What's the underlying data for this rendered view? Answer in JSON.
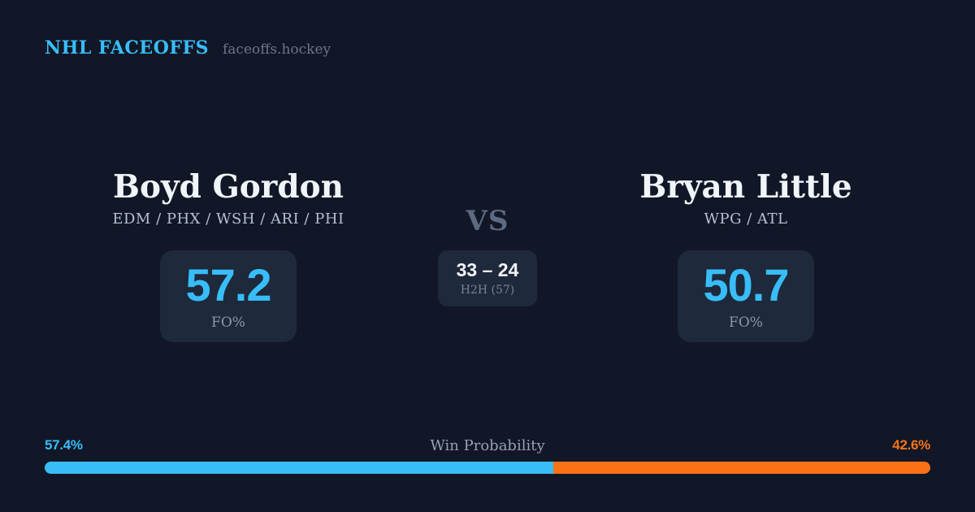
{
  "header": {
    "brand": "NHL FACEOFFS",
    "site": "faceoffs.hockey"
  },
  "matchup": {
    "vs_label": "VS",
    "left_player": {
      "name": "Boyd Gordon",
      "teams": "EDM / PHX / WSH / ARI / PHI",
      "fo_pct": "57.2",
      "fo_label": "FO%"
    },
    "right_player": {
      "name": "Bryan Little",
      "teams": "WPG / ATL",
      "fo_pct": "50.7",
      "fo_label": "FO%"
    },
    "h2h": {
      "score": "33 – 24",
      "label": "H2H (57)"
    }
  },
  "win_probability": {
    "label": "Win Probability",
    "left_pct_text": "57.4%",
    "right_pct_text": "42.6%",
    "left_pct": 57.4,
    "right_pct": 42.6
  },
  "colors": {
    "background": "#111726",
    "panel": "#1e293b",
    "accent_blue": "#38bdf8",
    "accent_orange": "#f97316",
    "text_primary": "#f1f4f8",
    "text_muted": "#8c98aa"
  }
}
